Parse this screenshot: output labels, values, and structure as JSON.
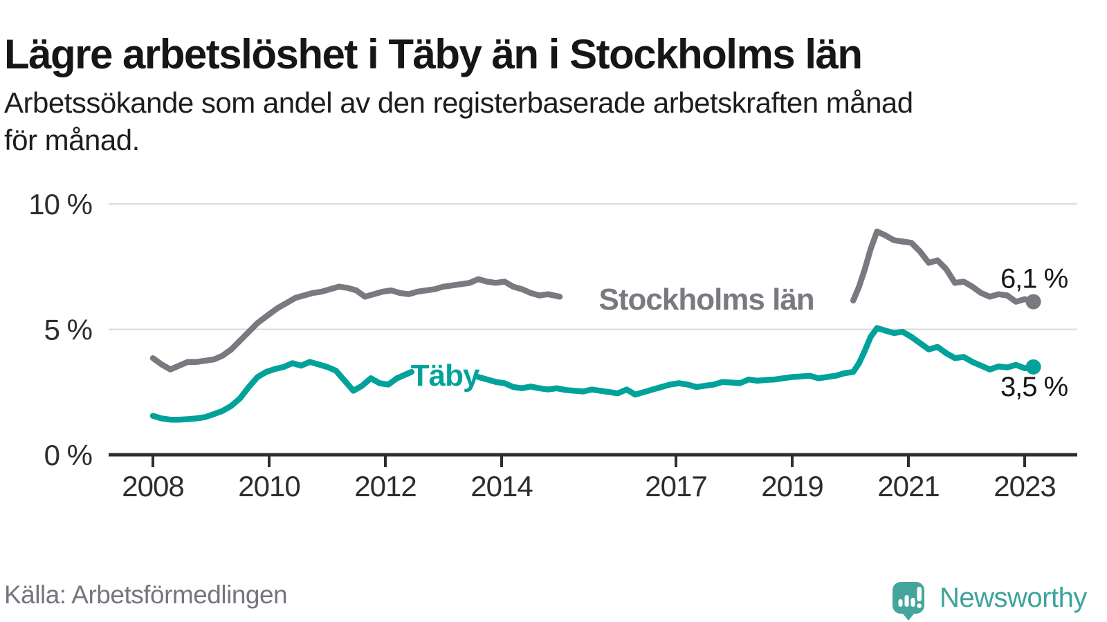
{
  "header": {
    "title": "Lägre arbetslöshet i Täby än i Stockholms län",
    "subtitle_line1": "Arbetssökande som andel av den registerbaserade arbetskraften månad",
    "subtitle_line2": "för månad."
  },
  "footer": {
    "source": "Källa: Arbetsförmedlingen",
    "brand": "Newsworthy"
  },
  "colors": {
    "stockholm_line": "#7b7880",
    "taby_line": "#00a29a",
    "axis": "#2e2e2e",
    "grid": "#dbdbdb",
    "axis_text": "#2d2d2d",
    "value_text": "#161616",
    "source_text": "#76747e",
    "brand_teal": "#44a59d"
  },
  "chart_data": {
    "type": "line",
    "title": "Lägre arbetslöshet i Täby än i Stockholms län",
    "subtitle": "Arbetssökande som andel av den registerbaserade arbetskraften månad för månad.",
    "source": "Källa: Arbetsförmedlingen",
    "xlim": [
      2007.25,
      2023.9
    ],
    "ylim": [
      0,
      10.2
    ],
    "grid": "horizontal",
    "legend_position": "inline-labels",
    "x_ticks": [
      {
        "value": 2008,
        "label": "2008"
      },
      {
        "value": 2010,
        "label": "2010"
      },
      {
        "value": 2012,
        "label": "2012"
      },
      {
        "value": 2014,
        "label": "2014"
      },
      {
        "value": 2017,
        "label": "2017"
      },
      {
        "value": 2019,
        "label": "2019"
      },
      {
        "value": 2021,
        "label": "2021"
      },
      {
        "value": 2023,
        "label": "2023"
      }
    ],
    "y_ticks": [
      {
        "value": 0,
        "label": "0 %"
      },
      {
        "value": 5,
        "label": "5 %"
      },
      {
        "value": 10,
        "label": "10 %"
      }
    ],
    "series": [
      {
        "name": "Stockholms län",
        "color": "#7b7880",
        "end_label": "6,1 %",
        "end_label_side": "above",
        "last_value": 6.1,
        "segments": [
          [
            [
              2008.0,
              3.85
            ],
            [
              2008.15,
              3.6
            ],
            [
              2008.3,
              3.4
            ],
            [
              2008.45,
              3.55
            ],
            [
              2008.6,
              3.7
            ],
            [
              2008.75,
              3.7
            ],
            [
              2008.9,
              3.75
            ],
            [
              2009.05,
              3.8
            ],
            [
              2009.2,
              3.95
            ],
            [
              2009.35,
              4.2
            ],
            [
              2009.5,
              4.55
            ],
            [
              2009.65,
              4.9
            ],
            [
              2009.8,
              5.25
            ],
            [
              2010.0,
              5.6
            ],
            [
              2010.15,
              5.85
            ],
            [
              2010.3,
              6.05
            ],
            [
              2010.45,
              6.25
            ],
            [
              2010.6,
              6.35
            ],
            [
              2010.75,
              6.45
            ],
            [
              2010.9,
              6.5
            ],
            [
              2011.05,
              6.6
            ],
            [
              2011.2,
              6.7
            ],
            [
              2011.35,
              6.65
            ],
            [
              2011.5,
              6.55
            ],
            [
              2011.65,
              6.3
            ],
            [
              2011.8,
              6.4
            ],
            [
              2011.95,
              6.5
            ],
            [
              2012.1,
              6.55
            ],
            [
              2012.25,
              6.45
            ],
            [
              2012.4,
              6.4
            ],
            [
              2012.55,
              6.5
            ],
            [
              2012.7,
              6.55
            ],
            [
              2012.85,
              6.6
            ],
            [
              2013.0,
              6.7
            ],
            [
              2013.15,
              6.75
            ],
            [
              2013.3,
              6.8
            ],
            [
              2013.45,
              6.85
            ],
            [
              2013.6,
              7.0
            ],
            [
              2013.75,
              6.9
            ],
            [
              2013.9,
              6.85
            ],
            [
              2014.05,
              6.9
            ],
            [
              2014.2,
              6.7
            ],
            [
              2014.35,
              6.6
            ],
            [
              2014.5,
              6.45
            ],
            [
              2014.65,
              6.35
            ],
            [
              2014.8,
              6.4
            ],
            [
              2015.0,
              6.3
            ]
          ],
          [
            [
              2020.05,
              6.15
            ],
            [
              2020.15,
              6.7
            ],
            [
              2020.25,
              7.4
            ],
            [
              2020.35,
              8.2
            ],
            [
              2020.46,
              8.9
            ],
            [
              2020.6,
              8.75
            ],
            [
              2020.75,
              8.55
            ],
            [
              2020.9,
              8.5
            ],
            [
              2021.05,
              8.45
            ],
            [
              2021.2,
              8.1
            ],
            [
              2021.35,
              7.65
            ],
            [
              2021.5,
              7.75
            ],
            [
              2021.65,
              7.4
            ],
            [
              2021.8,
              6.85
            ],
            [
              2021.95,
              6.9
            ],
            [
              2022.1,
              6.7
            ],
            [
              2022.25,
              6.45
            ],
            [
              2022.4,
              6.3
            ],
            [
              2022.55,
              6.4
            ],
            [
              2022.7,
              6.35
            ],
            [
              2022.85,
              6.1
            ],
            [
              2023.0,
              6.2
            ],
            [
              2023.15,
              6.1
            ]
          ]
        ]
      },
      {
        "name": "Täby",
        "color": "#00a29a",
        "end_label": "3,5 %",
        "end_label_side": "below",
        "last_value": 3.5,
        "segments": [
          [
            [
              2008.0,
              1.55
            ],
            [
              2008.15,
              1.45
            ],
            [
              2008.3,
              1.4
            ],
            [
              2008.45,
              1.4
            ],
            [
              2008.6,
              1.42
            ],
            [
              2008.75,
              1.45
            ],
            [
              2008.9,
              1.5
            ],
            [
              2009.05,
              1.62
            ],
            [
              2009.2,
              1.75
            ],
            [
              2009.35,
              1.95
            ],
            [
              2009.5,
              2.25
            ],
            [
              2009.65,
              2.7
            ],
            [
              2009.8,
              3.1
            ],
            [
              2009.95,
              3.3
            ],
            [
              2010.1,
              3.42
            ],
            [
              2010.25,
              3.5
            ],
            [
              2010.4,
              3.65
            ],
            [
              2010.55,
              3.55
            ],
            [
              2010.7,
              3.7
            ],
            [
              2010.85,
              3.6
            ],
            [
              2011.0,
              3.5
            ],
            [
              2011.15,
              3.35
            ],
            [
              2011.3,
              2.95
            ],
            [
              2011.45,
              2.55
            ],
            [
              2011.6,
              2.75
            ],
            [
              2011.75,
              3.05
            ],
            [
              2011.9,
              2.85
            ],
            [
              2012.05,
              2.8
            ],
            [
              2012.2,
              3.05
            ],
            [
              2012.35,
              3.2
            ],
            [
              2012.45,
              3.3
            ]
          ],
          [
            [
              2013.6,
              3.1
            ],
            [
              2013.75,
              3.0
            ],
            [
              2013.9,
              2.9
            ],
            [
              2014.05,
              2.85
            ],
            [
              2014.2,
              2.7
            ],
            [
              2014.35,
              2.65
            ],
            [
              2014.5,
              2.72
            ],
            [
              2014.65,
              2.65
            ],
            [
              2014.8,
              2.6
            ],
            [
              2014.95,
              2.65
            ],
            [
              2015.1,
              2.58
            ],
            [
              2015.25,
              2.55
            ],
            [
              2015.4,
              2.52
            ],
            [
              2015.55,
              2.6
            ],
            [
              2015.7,
              2.55
            ],
            [
              2015.85,
              2.5
            ],
            [
              2016.0,
              2.45
            ],
            [
              2016.15,
              2.6
            ],
            [
              2016.3,
              2.4
            ],
            [
              2016.45,
              2.5
            ],
            [
              2016.6,
              2.6
            ],
            [
              2016.75,
              2.7
            ],
            [
              2016.9,
              2.8
            ],
            [
              2017.05,
              2.85
            ],
            [
              2017.2,
              2.8
            ],
            [
              2017.35,
              2.7
            ],
            [
              2017.5,
              2.75
            ],
            [
              2017.65,
              2.8
            ],
            [
              2017.8,
              2.9
            ],
            [
              2017.95,
              2.88
            ],
            [
              2018.1,
              2.85
            ],
            [
              2018.25,
              3.0
            ],
            [
              2018.4,
              2.95
            ],
            [
              2018.55,
              2.98
            ],
            [
              2018.7,
              3.0
            ],
            [
              2018.85,
              3.05
            ],
            [
              2019.0,
              3.1
            ],
            [
              2019.15,
              3.12
            ],
            [
              2019.3,
              3.15
            ],
            [
              2019.45,
              3.05
            ],
            [
              2019.6,
              3.1
            ],
            [
              2019.75,
              3.15
            ],
            [
              2019.9,
              3.25
            ],
            [
              2020.05,
              3.3
            ],
            [
              2020.15,
              3.65
            ],
            [
              2020.25,
              4.15
            ],
            [
              2020.35,
              4.7
            ],
            [
              2020.46,
              5.05
            ],
            [
              2020.6,
              4.95
            ],
            [
              2020.75,
              4.85
            ],
            [
              2020.9,
              4.9
            ],
            [
              2021.05,
              4.7
            ],
            [
              2021.2,
              4.45
            ],
            [
              2021.35,
              4.2
            ],
            [
              2021.5,
              4.3
            ],
            [
              2021.65,
              4.05
            ],
            [
              2021.8,
              3.85
            ],
            [
              2021.95,
              3.9
            ],
            [
              2022.1,
              3.7
            ],
            [
              2022.25,
              3.55
            ],
            [
              2022.4,
              3.4
            ],
            [
              2022.55,
              3.52
            ],
            [
              2022.7,
              3.48
            ],
            [
              2022.85,
              3.58
            ],
            [
              2023.0,
              3.45
            ],
            [
              2023.15,
              3.5
            ]
          ]
        ]
      }
    ]
  }
}
